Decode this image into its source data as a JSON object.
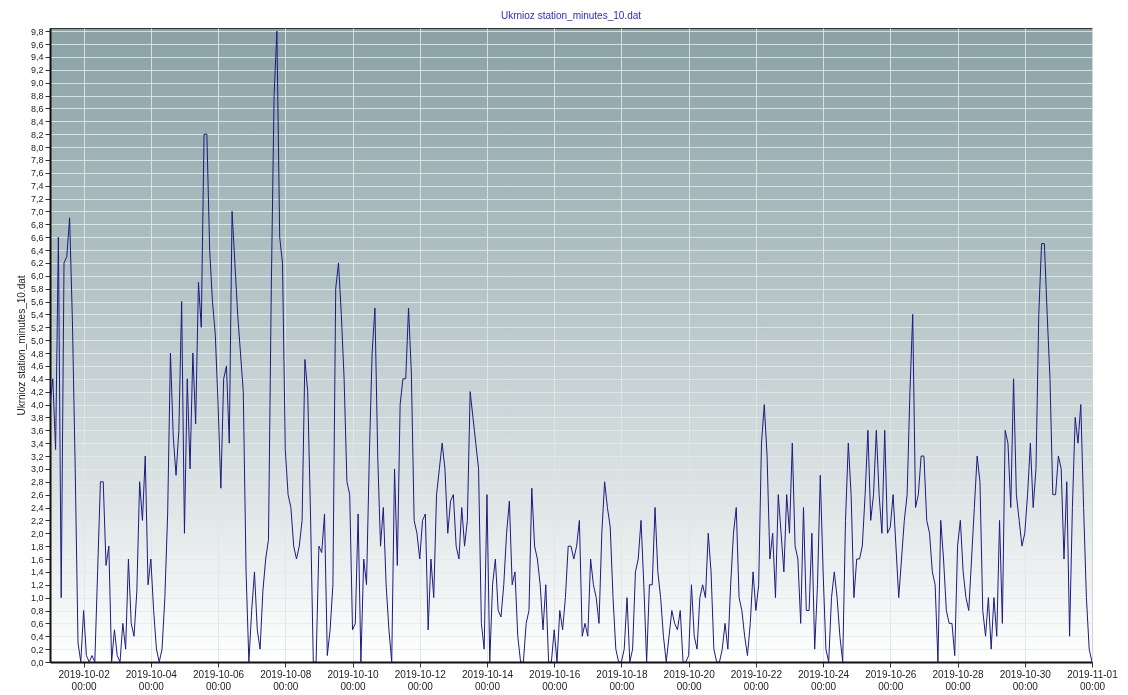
{
  "chart_data": {
    "type": "line",
    "title": "Ukrnioz station_minutes_10.dat",
    "ylabel": "Ukrnioz station_minutes_10.dat",
    "x": [
      "2019-10-01T00:00",
      "2019-10-01T02:00",
      "2019-10-01T04:00",
      "2019-10-01T06:00",
      "2019-10-01T08:00",
      "2019-10-01T10:00",
      "2019-10-01T12:00",
      "2019-10-01T14:00",
      "2019-10-01T16:00",
      "2019-10-01T18:00",
      "2019-10-01T20:00",
      "2019-10-01T22:00",
      "2019-10-02T00:00",
      "2019-10-02T02:00",
      "2019-10-02T04:00",
      "2019-10-02T06:00",
      "2019-10-02T08:00",
      "2019-10-02T10:00",
      "2019-10-02T12:00",
      "2019-10-02T14:00",
      "2019-10-02T16:00",
      "2019-10-02T18:00",
      "2019-10-02T20:00",
      "2019-10-02T22:00",
      "2019-10-03T00:00",
      "2019-10-03T02:00",
      "2019-10-03T04:00",
      "2019-10-03T06:00",
      "2019-10-03T08:00",
      "2019-10-03T10:00",
      "2019-10-03T12:00",
      "2019-10-03T14:00",
      "2019-10-03T16:00",
      "2019-10-03T18:00",
      "2019-10-03T20:00",
      "2019-10-03T22:00",
      "2019-10-04T00:00",
      "2019-10-04T02:00",
      "2019-10-04T04:00",
      "2019-10-04T06:00",
      "2019-10-04T08:00",
      "2019-10-04T10:00",
      "2019-10-04T12:00",
      "2019-10-04T14:00",
      "2019-10-04T16:00",
      "2019-10-04T18:00",
      "2019-10-04T20:00",
      "2019-10-04T22:00",
      "2019-10-05T00:00",
      "2019-10-05T02:00",
      "2019-10-05T04:00",
      "2019-10-05T06:00",
      "2019-10-05T08:00",
      "2019-10-05T10:00",
      "2019-10-05T12:00",
      "2019-10-05T14:00",
      "2019-10-05T16:00",
      "2019-10-05T18:00",
      "2019-10-05T20:00",
      "2019-10-05T22:00",
      "2019-10-06T00:00",
      "2019-10-06T02:00",
      "2019-10-06T04:00",
      "2019-10-06T06:00",
      "2019-10-06T08:00",
      "2019-10-06T10:00",
      "2019-10-06T12:00",
      "2019-10-06T14:00",
      "2019-10-06T16:00",
      "2019-10-06T18:00",
      "2019-10-06T20:00",
      "2019-10-06T22:00",
      "2019-10-07T00:00",
      "2019-10-07T02:00",
      "2019-10-07T04:00",
      "2019-10-07T06:00",
      "2019-10-07T08:00",
      "2019-10-07T10:00",
      "2019-10-07T12:00",
      "2019-10-07T14:00",
      "2019-10-07T16:00",
      "2019-10-07T18:00",
      "2019-10-07T20:00",
      "2019-10-07T22:00",
      "2019-10-08T00:00",
      "2019-10-08T02:00",
      "2019-10-08T04:00",
      "2019-10-08T06:00",
      "2019-10-08T08:00",
      "2019-10-08T10:00",
      "2019-10-08T12:00",
      "2019-10-08T14:00",
      "2019-10-08T16:00",
      "2019-10-08T18:00",
      "2019-10-08T20:00",
      "2019-10-08T22:00",
      "2019-10-09T00:00",
      "2019-10-09T02:00",
      "2019-10-09T04:00",
      "2019-10-09T06:00",
      "2019-10-09T08:00",
      "2019-10-09T10:00",
      "2019-10-09T12:00",
      "2019-10-09T14:00",
      "2019-10-09T16:00",
      "2019-10-09T18:00",
      "2019-10-09T20:00",
      "2019-10-09T22:00",
      "2019-10-10T00:00",
      "2019-10-10T02:00",
      "2019-10-10T04:00",
      "2019-10-10T06:00",
      "2019-10-10T08:00",
      "2019-10-10T10:00",
      "2019-10-10T12:00",
      "2019-10-10T14:00",
      "2019-10-10T16:00",
      "2019-10-10T18:00",
      "2019-10-10T20:00",
      "2019-10-10T22:00",
      "2019-10-11T00:00",
      "2019-10-11T02:00",
      "2019-10-11T04:00",
      "2019-10-11T06:00",
      "2019-10-11T08:00",
      "2019-10-11T10:00",
      "2019-10-11T12:00",
      "2019-10-11T14:00",
      "2019-10-11T16:00",
      "2019-10-11T18:00",
      "2019-10-11T20:00",
      "2019-10-11T22:00",
      "2019-10-12T00:00",
      "2019-10-12T02:00",
      "2019-10-12T04:00",
      "2019-10-12T06:00",
      "2019-10-12T08:00",
      "2019-10-12T10:00",
      "2019-10-12T12:00",
      "2019-10-12T14:00",
      "2019-10-12T16:00",
      "2019-10-12T18:00",
      "2019-10-12T20:00",
      "2019-10-12T22:00",
      "2019-10-13T00:00",
      "2019-10-13T02:00",
      "2019-10-13T04:00",
      "2019-10-13T06:00",
      "2019-10-13T08:00",
      "2019-10-13T10:00",
      "2019-10-13T12:00",
      "2019-10-13T14:00",
      "2019-10-13T16:00",
      "2019-10-13T18:00",
      "2019-10-13T20:00",
      "2019-10-13T22:00",
      "2019-10-14T00:00",
      "2019-10-14T02:00",
      "2019-10-14T04:00",
      "2019-10-14T06:00",
      "2019-10-14T08:00",
      "2019-10-14T10:00",
      "2019-10-14T12:00",
      "2019-10-14T14:00",
      "2019-10-14T16:00",
      "2019-10-14T18:00",
      "2019-10-14T20:00",
      "2019-10-14T22:00",
      "2019-10-15T00:00",
      "2019-10-15T02:00",
      "2019-10-15T04:00",
      "2019-10-15T06:00",
      "2019-10-15T08:00",
      "2019-10-15T10:00",
      "2019-10-15T12:00",
      "2019-10-15T14:00",
      "2019-10-15T16:00",
      "2019-10-15T18:00",
      "2019-10-15T20:00",
      "2019-10-15T22:00",
      "2019-10-16T00:00",
      "2019-10-16T02:00",
      "2019-10-16T04:00",
      "2019-10-16T06:00",
      "2019-10-16T08:00",
      "2019-10-16T10:00",
      "2019-10-16T12:00",
      "2019-10-16T14:00",
      "2019-10-16T16:00",
      "2019-10-16T18:00",
      "2019-10-16T20:00",
      "2019-10-16T22:00",
      "2019-10-17T00:00",
      "2019-10-17T02:00",
      "2019-10-17T04:00",
      "2019-10-17T06:00",
      "2019-10-17T08:00",
      "2019-10-17T10:00",
      "2019-10-17T12:00",
      "2019-10-17T14:00",
      "2019-10-17T16:00",
      "2019-10-17T18:00",
      "2019-10-17T20:00",
      "2019-10-17T22:00",
      "2019-10-18T00:00",
      "2019-10-18T02:00",
      "2019-10-18T04:00",
      "2019-10-18T06:00",
      "2019-10-18T08:00",
      "2019-10-18T10:00",
      "2019-10-18T12:00",
      "2019-10-18T14:00",
      "2019-10-18T16:00",
      "2019-10-18T18:00",
      "2019-10-18T20:00",
      "2019-10-18T22:00",
      "2019-10-19T00:00",
      "2019-10-19T02:00",
      "2019-10-19T04:00",
      "2019-10-19T06:00",
      "2019-10-19T08:00",
      "2019-10-19T10:00",
      "2019-10-19T12:00",
      "2019-10-19T14:00",
      "2019-10-19T16:00",
      "2019-10-19T18:00",
      "2019-10-19T20:00",
      "2019-10-19T22:00",
      "2019-10-20T00:00",
      "2019-10-20T02:00",
      "2019-10-20T04:00",
      "2019-10-20T06:00",
      "2019-10-20T08:00",
      "2019-10-20T10:00",
      "2019-10-20T12:00",
      "2019-10-20T14:00",
      "2019-10-20T16:00",
      "2019-10-20T18:00",
      "2019-10-20T20:00",
      "2019-10-20T22:00",
      "2019-10-21T00:00",
      "2019-10-21T02:00",
      "2019-10-21T04:00",
      "2019-10-21T06:00",
      "2019-10-21T08:00",
      "2019-10-21T10:00",
      "2019-10-21T12:00",
      "2019-10-21T14:00",
      "2019-10-21T16:00",
      "2019-10-21T18:00",
      "2019-10-21T20:00",
      "2019-10-21T22:00",
      "2019-10-22T00:00",
      "2019-10-22T02:00",
      "2019-10-22T04:00",
      "2019-10-22T06:00",
      "2019-10-22T08:00",
      "2019-10-22T10:00",
      "2019-10-22T12:00",
      "2019-10-22T14:00",
      "2019-10-22T16:00",
      "2019-10-22T18:00",
      "2019-10-22T20:00",
      "2019-10-22T22:00",
      "2019-10-23T00:00",
      "2019-10-23T02:00",
      "2019-10-23T04:00",
      "2019-10-23T06:00",
      "2019-10-23T08:00",
      "2019-10-23T10:00",
      "2019-10-23T12:00",
      "2019-10-23T14:00",
      "2019-10-23T16:00",
      "2019-10-23T18:00",
      "2019-10-23T20:00",
      "2019-10-23T22:00",
      "2019-10-24T00:00",
      "2019-10-24T02:00",
      "2019-10-24T04:00",
      "2019-10-24T06:00",
      "2019-10-24T08:00",
      "2019-10-24T10:00",
      "2019-10-24T12:00",
      "2019-10-24T14:00",
      "2019-10-24T16:00",
      "2019-10-24T18:00",
      "2019-10-24T20:00",
      "2019-10-24T22:00",
      "2019-10-25T00:00",
      "2019-10-25T02:00",
      "2019-10-25T04:00",
      "2019-10-25T06:00",
      "2019-10-25T08:00",
      "2019-10-25T10:00",
      "2019-10-25T12:00",
      "2019-10-25T14:00",
      "2019-10-25T16:00",
      "2019-10-25T18:00",
      "2019-10-25T20:00",
      "2019-10-25T22:00",
      "2019-10-26T00:00",
      "2019-10-26T02:00",
      "2019-10-26T04:00",
      "2019-10-26T06:00",
      "2019-10-26T08:00",
      "2019-10-26T10:00",
      "2019-10-26T12:00",
      "2019-10-26T14:00",
      "2019-10-26T16:00",
      "2019-10-26T18:00",
      "2019-10-26T20:00",
      "2019-10-26T22:00",
      "2019-10-27T00:00",
      "2019-10-27T02:00",
      "2019-10-27T04:00",
      "2019-10-27T06:00",
      "2019-10-27T08:00",
      "2019-10-27T10:00",
      "2019-10-27T12:00",
      "2019-10-27T14:00",
      "2019-10-27T16:00",
      "2019-10-27T18:00",
      "2019-10-27T20:00",
      "2019-10-27T22:00",
      "2019-10-28T00:00",
      "2019-10-28T02:00",
      "2019-10-28T04:00",
      "2019-10-28T06:00",
      "2019-10-28T08:00",
      "2019-10-28T10:00",
      "2019-10-28T12:00",
      "2019-10-28T14:00",
      "2019-10-28T16:00",
      "2019-10-28T18:00",
      "2019-10-28T20:00",
      "2019-10-28T22:00",
      "2019-10-29T00:00",
      "2019-10-29T02:00",
      "2019-10-29T04:00",
      "2019-10-29T06:00",
      "2019-10-29T08:00",
      "2019-10-29T10:00",
      "2019-10-29T12:00",
      "2019-10-29T14:00",
      "2019-10-29T16:00",
      "2019-10-29T18:00",
      "2019-10-29T20:00",
      "2019-10-29T22:00",
      "2019-10-30T00:00",
      "2019-10-30T02:00",
      "2019-10-30T04:00",
      "2019-10-30T06:00",
      "2019-10-30T08:00",
      "2019-10-30T10:00",
      "2019-10-30T12:00",
      "2019-10-30T14:00",
      "2019-10-30T16:00",
      "2019-10-30T18:00",
      "2019-10-30T20:00",
      "2019-10-30T22:00",
      "2019-10-31T00:00",
      "2019-10-31T02:00",
      "2019-10-31T04:00",
      "2019-10-31T06:00",
      "2019-10-31T08:00",
      "2019-10-31T10:00",
      "2019-10-31T12:00",
      "2019-10-31T14:00",
      "2019-10-31T16:00",
      "2019-10-31T18:00",
      "2019-10-31T20:00",
      "2019-10-31T22:00",
      "2019-11-01T00:00"
    ],
    "series": [
      {
        "color": "#1c1c80",
        "values": [
          4.0,
          4.4,
          3.3,
          6.6,
          1.0,
          6.2,
          6.3,
          6.9,
          5.3,
          3.0,
          0.3,
          0.0,
          0.8,
          0.1,
          0.0,
          0.1,
          0.0,
          1.4,
          2.8,
          2.8,
          1.5,
          1.8,
          0.0,
          0.5,
          0.1,
          0.0,
          0.6,
          0.2,
          1.6,
          0.6,
          0.4,
          1.1,
          2.8,
          2.2,
          3.2,
          1.2,
          1.6,
          0.8,
          0.2,
          0.0,
          0.2,
          1.0,
          2.3,
          4.8,
          3.5,
          2.9,
          3.6,
          5.6,
          2.0,
          4.4,
          3.0,
          4.8,
          3.7,
          5.9,
          5.2,
          8.2,
          8.2,
          6.4,
          5.6,
          5.1,
          4.0,
          2.7,
          4.4,
          4.6,
          3.4,
          7.0,
          6.2,
          5.4,
          4.8,
          4.2,
          1.4,
          0.0,
          0.8,
          1.4,
          0.5,
          0.2,
          1.1,
          1.6,
          1.9,
          5.8,
          8.8,
          9.8,
          6.6,
          6.2,
          3.3,
          2.6,
          2.4,
          1.8,
          1.6,
          1.8,
          2.2,
          4.7,
          4.2,
          2.3,
          0.0,
          0.0,
          1.8,
          1.7,
          2.3,
          0.1,
          0.5,
          1.2,
          5.8,
          6.2,
          5.4,
          4.4,
          2.8,
          2.6,
          0.5,
          0.6,
          2.3,
          0.0,
          1.6,
          1.2,
          3.2,
          4.8,
          5.5,
          3.2,
          1.8,
          2.4,
          1.2,
          0.5,
          0.0,
          3.0,
          1.5,
          4.0,
          4.4,
          4.4,
          5.5,
          4.5,
          2.2,
          2.0,
          1.6,
          2.2,
          2.3,
          0.5,
          1.6,
          1.0,
          2.6,
          3.0,
          3.4,
          3.0,
          2.0,
          2.5,
          2.6,
          1.8,
          1.6,
          2.4,
          1.8,
          2.2,
          4.2,
          3.8,
          3.4,
          3.0,
          0.6,
          0.2,
          2.6,
          0.0,
          1.2,
          1.6,
          0.8,
          0.7,
          1.2,
          2.0,
          2.5,
          1.2,
          1.4,
          0.4,
          0.0,
          0.0,
          0.6,
          0.8,
          2.7,
          1.8,
          1.6,
          1.2,
          0.5,
          1.2,
          0.0,
          0.0,
          0.5,
          0.0,
          0.8,
          0.5,
          1.0,
          1.8,
          1.8,
          1.6,
          1.8,
          2.2,
          0.4,
          0.6,
          0.4,
          1.6,
          1.2,
          1.0,
          0.6,
          2.0,
          2.8,
          2.4,
          2.1,
          1.0,
          0.2,
          0.0,
          0.0,
          0.2,
          1.0,
          0.0,
          0.2,
          1.4,
          1.6,
          2.2,
          1.2,
          0.0,
          1.2,
          1.2,
          2.4,
          1.4,
          1.0,
          0.4,
          0.0,
          0.4,
          0.8,
          0.6,
          0.5,
          0.8,
          0.0,
          0.0,
          0.1,
          1.2,
          0.4,
          0.2,
          1.0,
          1.2,
          1.0,
          2.0,
          1.4,
          0.2,
          0.0,
          0.0,
          0.2,
          0.6,
          0.2,
          1.2,
          2.0,
          2.4,
          1.0,
          0.8,
          0.4,
          0.1,
          0.6,
          1.4,
          0.8,
          1.2,
          3.4,
          4.0,
          3.2,
          1.6,
          2.0,
          1.0,
          2.6,
          2.0,
          1.4,
          2.6,
          2.0,
          3.4,
          1.8,
          1.6,
          0.6,
          2.4,
          0.8,
          0.8,
          2.0,
          0.2,
          1.2,
          2.9,
          1.4,
          0.2,
          0.0,
          1.0,
          1.4,
          1.0,
          0.4,
          0.0,
          2.2,
          3.4,
          2.6,
          1.0,
          1.6,
          1.6,
          1.8,
          2.6,
          3.6,
          2.2,
          2.6,
          3.6,
          2.6,
          2.0,
          3.6,
          2.0,
          2.1,
          2.6,
          1.8,
          1.0,
          1.6,
          2.2,
          2.6,
          4.2,
          5.4,
          2.4,
          2.6,
          3.2,
          3.2,
          2.2,
          2.0,
          1.4,
          1.2,
          0.0,
          2.2,
          1.6,
          0.8,
          0.6,
          0.6,
          0.1,
          1.8,
          2.2,
          1.4,
          1.0,
          0.8,
          1.6,
          2.4,
          3.2,
          2.8,
          0.8,
          0.4,
          1.0,
          0.2,
          1.0,
          0.4,
          2.2,
          0.6,
          3.6,
          3.4,
          2.4,
          4.4,
          2.6,
          2.2,
          1.8,
          2.0,
          2.6,
          3.4,
          2.4,
          3.0,
          5.4,
          6.5,
          6.5,
          5.4,
          4.4,
          2.6,
          2.6,
          3.2,
          3.0,
          1.6,
          2.8,
          0.4,
          2.4,
          3.8,
          3.4,
          4.0,
          2.4,
          1.0,
          0.2,
          0.0
        ]
      }
    ],
    "xlim": [
      "2019-10-01T00:00",
      "2019-11-01T00:00"
    ],
    "xticks": [
      {
        "value": "2019-10-02T00:00",
        "label": "2019-10-02 00:00"
      },
      {
        "value": "2019-10-04T00:00",
        "label": "2019-10-04 00:00"
      },
      {
        "value": "2019-10-06T00:00",
        "label": "2019-10-06 00:00"
      },
      {
        "value": "2019-10-08T00:00",
        "label": "2019-10-08 00:00"
      },
      {
        "value": "2019-10-10T00:00",
        "label": "2019-10-10 00:00"
      },
      {
        "value": "2019-10-12T00:00",
        "label": "2019-10-12 00:00"
      },
      {
        "value": "2019-10-14T00:00",
        "label": "2019-10-14 00:00"
      },
      {
        "value": "2019-10-16T00:00",
        "label": "2019-10-16 00:00"
      },
      {
        "value": "2019-10-18T00:00",
        "label": "2019-10-18 00:00"
      },
      {
        "value": "2019-10-20T00:00",
        "label": "2019-10-20 00:00"
      },
      {
        "value": "2019-10-22T00:00",
        "label": "2019-10-22 00:00"
      },
      {
        "value": "2019-10-24T00:00",
        "label": "2019-10-24 00:00"
      },
      {
        "value": "2019-10-26T00:00",
        "label": "2019-10-26 00:00"
      },
      {
        "value": "2019-10-28T00:00",
        "label": "2019-10-28 00:00"
      },
      {
        "value": "2019-10-30T00:00",
        "label": "2019-10-30 00:00"
      },
      {
        "value": "2019-11-01T00:00",
        "label": "2019-11-01 00:00"
      }
    ],
    "ylim": [
      0,
      9.85
    ],
    "yticks": [
      {
        "value": 0,
        "label": "0,0"
      },
      {
        "value": 0.2,
        "label": "0,2"
      },
      {
        "value": 0.4,
        "label": "0,4"
      },
      {
        "value": 0.6,
        "label": "0,6"
      },
      {
        "value": 0.8,
        "label": "0,8"
      },
      {
        "value": 1,
        "label": "1,0"
      },
      {
        "value": 1.2,
        "label": "1,2"
      },
      {
        "value": 1.4,
        "label": "1,4"
      },
      {
        "value": 1.6,
        "label": "1,6"
      },
      {
        "value": 1.8,
        "label": "1,8"
      },
      {
        "value": 2,
        "label": "2,0"
      },
      {
        "value": 2.2,
        "label": "2,2"
      },
      {
        "value": 2.4,
        "label": "2,4"
      },
      {
        "value": 2.6,
        "label": "2,6"
      },
      {
        "value": 2.8,
        "label": "2,8"
      },
      {
        "value": 3,
        "label": "3,0"
      },
      {
        "value": 3.2,
        "label": "3,2"
      },
      {
        "value": 3.4,
        "label": "3,4"
      },
      {
        "value": 3.6,
        "label": "3,6"
      },
      {
        "value": 3.8,
        "label": "3,8"
      },
      {
        "value": 4,
        "label": "4,0"
      },
      {
        "value": 4.2,
        "label": "4,2"
      },
      {
        "value": 4.4,
        "label": "4,4"
      },
      {
        "value": 4.6,
        "label": "4,6"
      },
      {
        "value": 4.8,
        "label": "4,8"
      },
      {
        "value": 5,
        "label": "5,0"
      },
      {
        "value": 5.2,
        "label": "5,2"
      },
      {
        "value": 5.4,
        "label": "5,4"
      },
      {
        "value": 5.6,
        "label": "5,6"
      },
      {
        "value": 5.8,
        "label": "5,8"
      },
      {
        "value": 6,
        "label": "6,0"
      },
      {
        "value": 6.2,
        "label": "6,2"
      },
      {
        "value": 6.4,
        "label": "6,4"
      },
      {
        "value": 6.6,
        "label": "6,6"
      },
      {
        "value": 6.8,
        "label": "6,8"
      },
      {
        "value": 7,
        "label": "7,0"
      },
      {
        "value": 7.2,
        "label": "7,2"
      },
      {
        "value": 7.4,
        "label": "7,4"
      },
      {
        "value": 7.6,
        "label": "7,6"
      },
      {
        "value": 7.8,
        "label": "7,8"
      },
      {
        "value": 8,
        "label": "8,0"
      },
      {
        "value": 8.2,
        "label": "8,2"
      },
      {
        "value": 8.4,
        "label": "8,4"
      },
      {
        "value": 8.6,
        "label": "8,6"
      },
      {
        "value": 8.8,
        "label": "8,8"
      },
      {
        "value": 9,
        "label": "9,0"
      },
      {
        "value": 9.2,
        "label": "9,2"
      },
      {
        "value": 9.4,
        "label": "9,4"
      },
      {
        "value": 9.6,
        "label": "9,6"
      },
      {
        "value": 9.8,
        "label": "9,8"
      }
    ],
    "grid": true
  }
}
